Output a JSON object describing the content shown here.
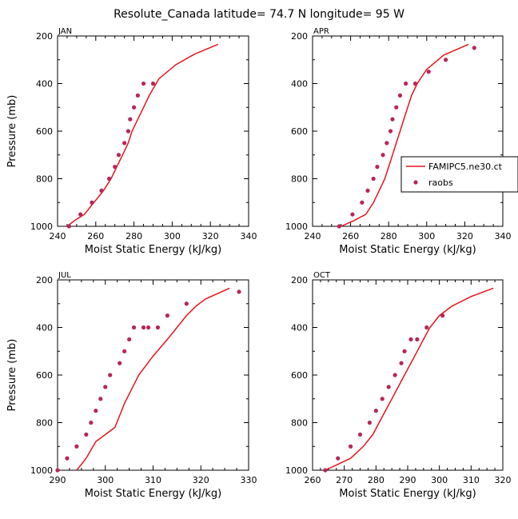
{
  "title": "Resolute_Canada   latitude= 74.7 N longitude= 95 W",
  "colors": {
    "model": "#e8141c",
    "obs": "#b8265a",
    "axis": "#000000"
  },
  "chart_data": [
    {
      "type": "line",
      "panel_label": "JAN",
      "xlabel": "Moist Static Energy (kJ/kg)",
      "ylabel": "Pressure (mb)",
      "xlim": [
        240,
        340
      ],
      "ylim": [
        1000,
        200
      ],
      "xticks": [
        240,
        260,
        280,
        300,
        320,
        340
      ],
      "yticks": [
        200,
        400,
        600,
        800,
        1000
      ],
      "grid": false,
      "series": [
        {
          "name": "FAMIPC5.ne30.ct",
          "style": "line",
          "x": [
            245,
            249,
            254,
            259,
            264,
            268,
            271,
            274,
            277,
            279,
            282,
            285,
            288,
            293,
            302,
            312,
            324
          ],
          "y": [
            1000,
            975,
            950,
            900,
            850,
            800,
            750,
            700,
            650,
            600,
            550,
            500,
            450,
            380,
            320,
            275,
            235
          ]
        },
        {
          "name": "raobs",
          "style": "marker",
          "x": [
            246,
            252,
            258,
            263,
            267,
            270,
            272,
            275,
            277,
            278,
            280,
            282,
            285,
            290
          ],
          "y": [
            1000,
            950,
            900,
            850,
            800,
            750,
            700,
            650,
            600,
            550,
            500,
            450,
            400,
            400
          ]
        }
      ]
    },
    {
      "type": "line",
      "panel_label": "APR",
      "xlabel": "Moist Static Energy (kJ/kg)",
      "ylabel": "",
      "xlim": [
        240,
        340
      ],
      "ylim": [
        1000,
        200
      ],
      "xticks": [
        240,
        260,
        280,
        300,
        320,
        340
      ],
      "yticks": [
        200,
        400,
        600,
        800,
        1000
      ],
      "grid": false,
      "legend": {
        "location": "right",
        "entries": [
          "FAMIPC5.ne30.ct",
          "raobs"
        ]
      },
      "series": [
        {
          "name": "FAMIPC5.ne30.ct",
          "style": "line",
          "x": [
            255,
            262,
            268,
            272,
            275,
            278,
            280,
            282,
            284,
            286,
            288,
            290,
            292,
            295,
            300,
            309,
            322
          ],
          "y": [
            1000,
            975,
            950,
            900,
            850,
            800,
            750,
            700,
            650,
            600,
            550,
            500,
            450,
            400,
            340,
            280,
            235
          ]
        },
        {
          "name": "raobs",
          "style": "marker",
          "x": [
            254,
            261,
            266,
            269,
            272,
            274,
            277,
            279,
            281,
            282,
            284,
            286,
            289,
            294,
            301,
            310,
            325
          ],
          "y": [
            1000,
            950,
            900,
            850,
            800,
            750,
            700,
            650,
            600,
            550,
            500,
            450,
            400,
            400,
            350,
            300,
            250
          ]
        }
      ]
    },
    {
      "type": "line",
      "panel_label": "JUL",
      "xlabel": "Moist Static Energy (kJ/kg)",
      "ylabel": "Pressure (mb)",
      "xlim": [
        290,
        330
      ],
      "ylim": [
        1000,
        200
      ],
      "xticks": [
        290,
        300,
        310,
        320,
        330
      ],
      "yticks": [
        200,
        400,
        600,
        800,
        1000
      ],
      "grid": false,
      "series": [
        {
          "name": "FAMIPC5.ne30.ct",
          "style": "line",
          "x": [
            294,
            296,
            298,
            300,
            302,
            303,
            304,
            305,
            307,
            310,
            313,
            315,
            317,
            319,
            321,
            326
          ],
          "y": [
            1000,
            950,
            880,
            850,
            820,
            770,
            720,
            680,
            600,
            520,
            450,
            400,
            350,
            310,
            280,
            235
          ]
        },
        {
          "name": "raobs",
          "style": "marker",
          "x": [
            290,
            292,
            294,
            296,
            297,
            298,
            299,
            300,
            301,
            303,
            304,
            305,
            306,
            308,
            309,
            311,
            313,
            317,
            328
          ],
          "y": [
            1000,
            950,
            900,
            850,
            800,
            750,
            700,
            650,
            600,
            550,
            500,
            450,
            400,
            400,
            400,
            400,
            350,
            300,
            250
          ]
        }
      ]
    },
    {
      "type": "line",
      "panel_label": "OCT",
      "xlabel": "Moist Static Energy (kJ/kg)",
      "ylabel": "",
      "xlim": [
        260,
        320
      ],
      "ylim": [
        1000,
        200
      ],
      "xticks": [
        260,
        270,
        280,
        290,
        300,
        310,
        320
      ],
      "yticks": [
        200,
        400,
        600,
        800,
        1000
      ],
      "grid": false,
      "series": [
        {
          "name": "FAMIPC5.ne30.ct",
          "style": "line",
          "x": [
            264,
            268,
            272,
            276,
            279,
            281,
            283,
            285,
            287,
            289,
            291,
            293,
            295,
            297,
            300,
            304,
            310,
            317
          ],
          "y": [
            1000,
            975,
            950,
            900,
            850,
            800,
            750,
            700,
            650,
            600,
            550,
            500,
            450,
            400,
            350,
            310,
            270,
            235
          ]
        },
        {
          "name": "raobs",
          "style": "marker",
          "x": [
            264,
            268,
            272,
            275,
            278,
            280,
            282,
            284,
            286,
            288,
            289,
            291,
            293,
            296,
            301
          ],
          "y": [
            1000,
            950,
            900,
            850,
            800,
            750,
            700,
            650,
            600,
            550,
            500,
            450,
            450,
            400,
            350
          ]
        }
      ]
    }
  ]
}
